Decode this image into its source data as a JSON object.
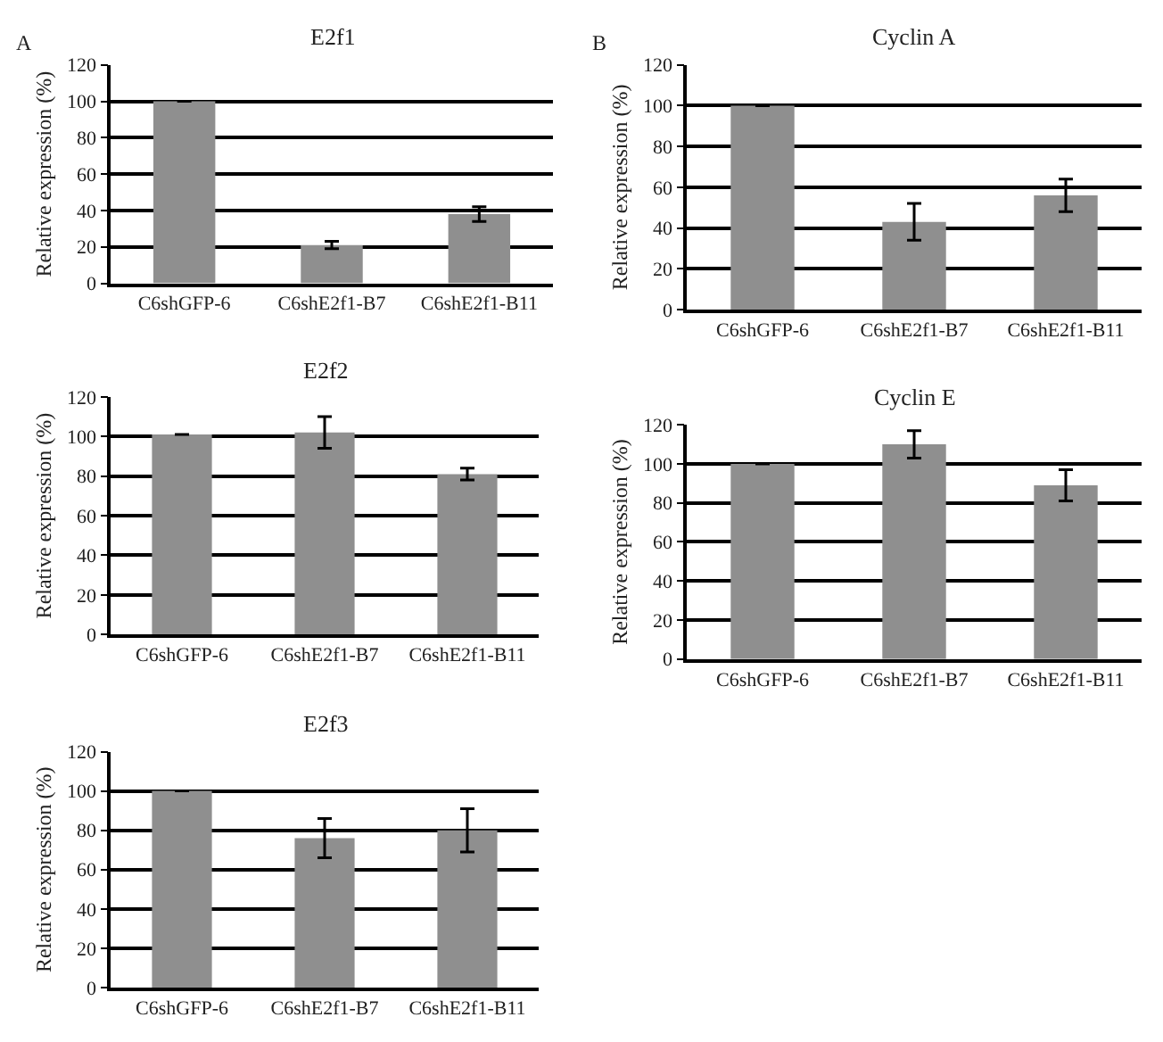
{
  "chart_data": [
    {
      "type": "bar",
      "title": "E2f1",
      "ylabel": "Relative expression (%)",
      "annotations": [
        "A"
      ],
      "categories": [
        "C6shGFP-6",
        "C6shE2f1-B7",
        "C6shE2f1-B11"
      ],
      "values": [
        100,
        21,
        38
      ],
      "errors": [
        null,
        2,
        4
      ],
      "color": "#8f8f8f",
      "ylim": [
        0,
        120
      ],
      "yticks": [
        0,
        20,
        40,
        60,
        80,
        100,
        120
      ],
      "grid": "y"
    },
    {
      "type": "bar",
      "title": "E2f2",
      "ylabel": "Relative expression (%)",
      "categories": [
        "C6shGFP-6",
        "C6shE2f1-B7",
        "C6shE2f1-B11"
      ],
      "values": [
        101,
        102,
        81
      ],
      "errors": [
        null,
        8,
        3
      ],
      "color": "#8f8f8f",
      "ylim": [
        0,
        120
      ],
      "yticks": [
        0,
        20,
        40,
        60,
        80,
        100,
        120
      ],
      "grid": "y"
    },
    {
      "type": "bar",
      "title": "E2f3",
      "ylabel": "Relative expression (%)",
      "categories": [
        "C6shGFP-6",
        "C6shE2f1-B7",
        "C6shE2f1-B11"
      ],
      "values": [
        100,
        76,
        80
      ],
      "errors": [
        null,
        10,
        11
      ],
      "color": "#8f8f8f",
      "ylim": [
        0,
        120
      ],
      "yticks": [
        0,
        20,
        40,
        60,
        80,
        100,
        120
      ],
      "grid": "y"
    },
    {
      "type": "bar",
      "title": "Cyclin A",
      "ylabel": "Relative expression (%)",
      "annotations": [
        "B"
      ],
      "categories": [
        "C6shGFP-6",
        "C6shE2f1-B7",
        "C6shE2f1-B11"
      ],
      "values": [
        100,
        43,
        56
      ],
      "errors": [
        null,
        9,
        8
      ],
      "color": "#8f8f8f",
      "ylim": [
        0,
        120
      ],
      "yticks": [
        0,
        20,
        40,
        60,
        80,
        100,
        120
      ],
      "grid": "y"
    },
    {
      "type": "bar",
      "title": "Cyclin E",
      "ylabel": "Relative expression (%)",
      "categories": [
        "C6shGFP-6",
        "C6shE2f1-B7",
        "C6shE2f1-B11"
      ],
      "values": [
        100,
        110,
        89
      ],
      "errors": [
        null,
        7,
        8
      ],
      "color": "#8f8f8f",
      "ylim": [
        0,
        120
      ],
      "yticks": [
        0,
        20,
        40,
        60,
        80,
        100,
        120
      ],
      "grid": "y"
    }
  ]
}
